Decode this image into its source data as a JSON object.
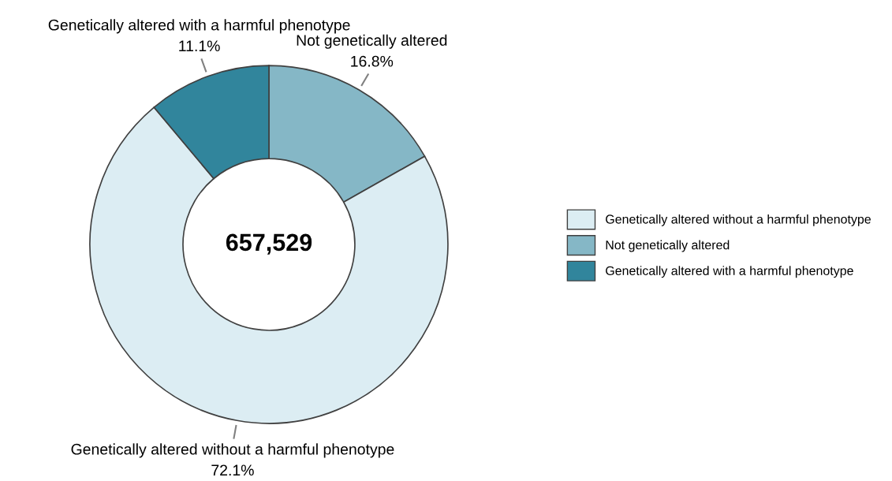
{
  "chart_data": {
    "type": "donut",
    "categories": [
      "Genetically altered without a harmful phenotype",
      "Not genetically altered",
      "Genetically altered with a harmful phenotype"
    ],
    "values": [
      72.1,
      16.8,
      11.1
    ],
    "colors": [
      "#dcedf3",
      "#85b7c6",
      "#31859c"
    ],
    "value_labels": [
      "72.1%",
      "16.8%",
      "11.1%"
    ],
    "annotations": [
      "657,529"
    ],
    "legend": "right"
  }
}
